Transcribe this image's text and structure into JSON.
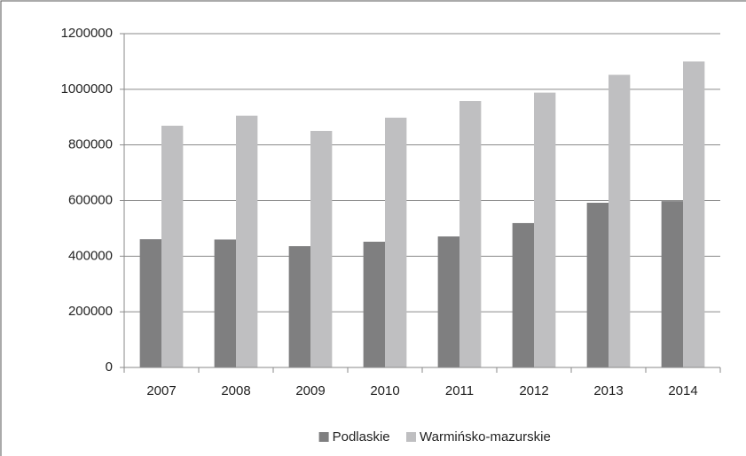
{
  "chart_data": {
    "type": "bar",
    "categories": [
      "2007",
      "2008",
      "2009",
      "2010",
      "2011",
      "2012",
      "2013",
      "2014"
    ],
    "series": [
      {
        "name": "Podlaskie",
        "color": "#7f7f80",
        "values": [
          461000,
          460000,
          436000,
          452000,
          471000,
          519000,
          592000,
          598000
        ]
      },
      {
        "name": "Warmińsko-mazurskie",
        "color": "#bfbfc1",
        "values": [
          869000,
          905000,
          850000,
          898000,
          958000,
          988000,
          1052000,
          1100000
        ]
      }
    ],
    "ylim": [
      0,
      1200000
    ],
    "yticks": [
      0,
      200000,
      400000,
      600000,
      800000,
      1000000,
      1200000
    ],
    "grid": true,
    "legend": "bottom"
  }
}
